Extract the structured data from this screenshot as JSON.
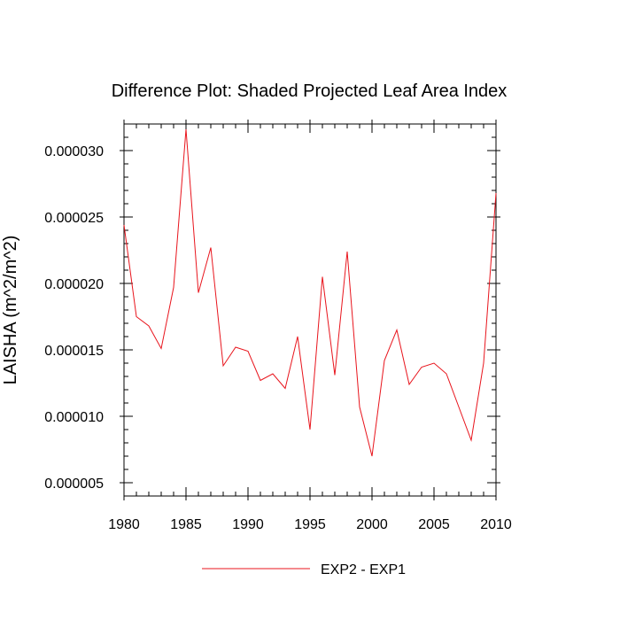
{
  "chart_data": {
    "type": "line",
    "title": "Difference Plot: Shaded Projected Leaf Area Index",
    "xlabel": "",
    "ylabel": "LAISHA  (m^2/m^2)",
    "xlim": [
      1980,
      2010
    ],
    "ylim": [
      4e-06,
      3.2e-05
    ],
    "x_ticks": [
      1980,
      1985,
      1990,
      1995,
      2000,
      2005,
      2010
    ],
    "x_tick_labels": [
      "1980",
      "1985",
      "1990",
      "1995",
      "2000",
      "2005",
      "2010"
    ],
    "y_ticks": [
      5e-06,
      1e-05,
      1.5e-05,
      2e-05,
      2.5e-05,
      3e-05
    ],
    "y_tick_labels": [
      "0.000005",
      "0.000010",
      "0.000015",
      "0.000020",
      "0.000025",
      "0.000030"
    ],
    "legend_position": "bottom",
    "series": [
      {
        "name": "EXP2 - EXP1",
        "color": "#e8141c",
        "x": [
          1980,
          1981,
          1982,
          1983,
          1984,
          1985,
          1986,
          1987,
          1988,
          1989,
          1990,
          1991,
          1992,
          1993,
          1994,
          1995,
          1996,
          1997,
          1998,
          1999,
          2000,
          2001,
          2002,
          2003,
          2004,
          2005,
          2006,
          2007,
          2008,
          2009,
          2010
        ],
        "values": [
          2.44e-05,
          1.75e-05,
          1.68e-05,
          1.51e-05,
          1.97e-05,
          3.16e-05,
          1.93e-05,
          2.27e-05,
          1.38e-05,
          1.52e-05,
          1.49e-05,
          1.27e-05,
          1.32e-05,
          1.21e-05,
          1.6e-05,
          9e-06,
          2.05e-05,
          1.31e-05,
          2.24e-05,
          1.07e-05,
          7e-06,
          1.42e-05,
          1.65e-05,
          1.24e-05,
          1.37e-05,
          1.4e-05,
          1.32e-05,
          1.07e-05,
          8.2e-06,
          1.4e-05,
          2.68e-05
        ]
      }
    ]
  }
}
